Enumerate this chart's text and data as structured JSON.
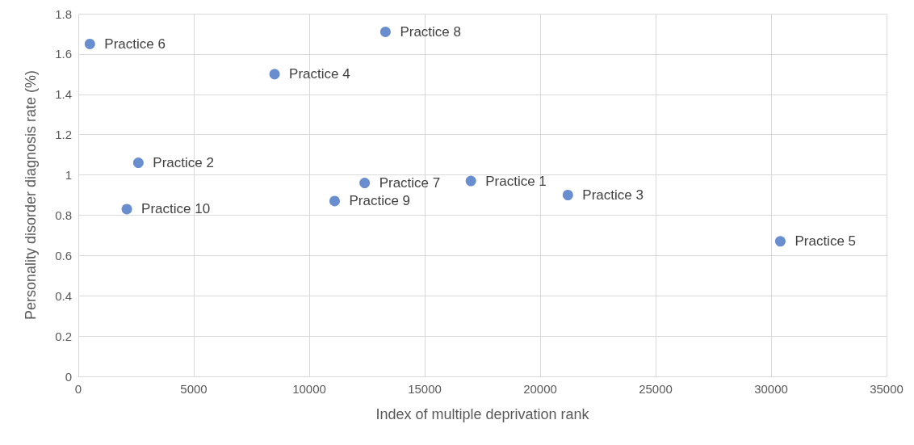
{
  "chart_data": {
    "type": "scatter",
    "xlabel": "Index of multiple deprivation rank",
    "ylabel": "Personality disorder diagnosis rate (%)",
    "x": [
      17000,
      2600,
      21200,
      8500,
      30400,
      500,
      12400,
      13300,
      11100,
      2100
    ],
    "series": [
      {
        "color": "#4472c4",
        "values": [
          0.97,
          1.06,
          0.9,
          1.5,
          0.67,
          1.65,
          0.96,
          1.71,
          0.87,
          0.83
        ]
      }
    ],
    "annotations": [
      {
        "text": "Practice 1",
        "x": 17000,
        "y": 0.97
      },
      {
        "text": "Practice 2",
        "x": 2600,
        "y": 1.06
      },
      {
        "text": "Practice 3",
        "x": 21200,
        "y": 0.9
      },
      {
        "text": "Practice 4",
        "x": 8500,
        "y": 1.5
      },
      {
        "text": "Practice 5",
        "x": 30400,
        "y": 0.67
      },
      {
        "text": "Practice 6",
        "x": 500,
        "y": 1.65
      },
      {
        "text": "Practice 7",
        "x": 12400,
        "y": 0.96
      },
      {
        "text": "Practice 8",
        "x": 13300,
        "y": 1.71
      },
      {
        "text": "Practice 9",
        "x": 11100,
        "y": 0.87
      },
      {
        "text": "Practice 10",
        "x": 2100,
        "y": 0.83
      }
    ],
    "xlim": [
      0,
      35000
    ],
    "xticks": [
      0,
      5000,
      10000,
      15000,
      20000,
      25000,
      30000,
      35000
    ],
    "ylim": [
      0,
      1.8
    ],
    "yticks": [
      0,
      0.2,
      0.4,
      0.6,
      0.8,
      1,
      1.2,
      1.4,
      1.6,
      1.8
    ],
    "grid": true,
    "marker": "circle"
  }
}
